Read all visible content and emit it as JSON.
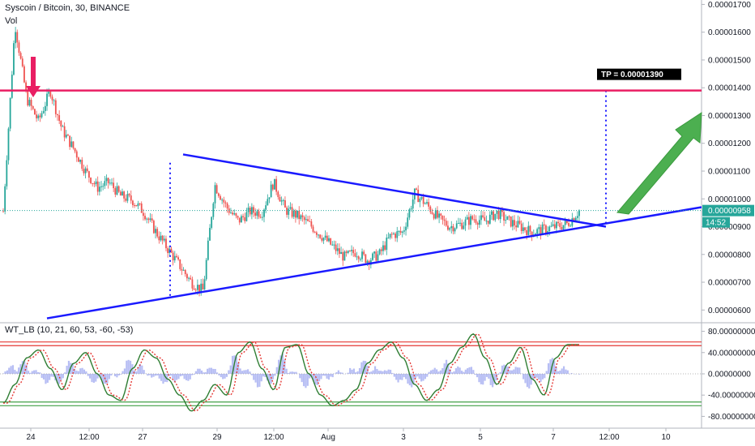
{
  "header": {
    "symbol_line": "Syscoin / Bitcoin, 30, BINANCE",
    "volume_label": "Vol",
    "indicator_label": "WT_LB (10, 21, 60, 53, -60, -53)"
  },
  "annotations": {
    "tp_label": "TP = 0.00001390",
    "current_price": "0.00000958",
    "countdown": "14:52"
  },
  "colors": {
    "up_candle": "#26a69a",
    "down_candle": "#ef5350",
    "resistance": "#e91e63",
    "triangle": "#1a1aff",
    "arrow_green": "#4caf50",
    "price_tag": "#26a69a"
  },
  "chart_data": [
    {
      "type": "line",
      "title": "Syscoin / Bitcoin, 30, BINANCE",
      "y_axis": {
        "ticks": [
          "0.00001700",
          "0.00001600",
          "0.00001500",
          "0.00001400",
          "0.00001300",
          "0.00001200",
          "0.00001100",
          "0.00001000",
          "0.00000900",
          "0.00000800",
          "0.00000700",
          "0.00000600"
        ],
        "ylim": [
          5.6e-06,
          1.71e-05
        ]
      },
      "x_axis": {
        "ticks": [
          "24",
          "12:00",
          "27",
          "29",
          "12:00",
          "Aug",
          "3",
          "5",
          "7",
          "12:00",
          "10"
        ]
      },
      "series": [
        {
          "values": [
            9.55e-06,
            1.63e-05,
            1.36e-05,
            1.28e-05,
            1.39e-05,
            1.25e-05,
            1.18e-05,
            1.1e-05,
            1.04e-05,
            1.06e-05,
            1.01e-05,
            9.95e-06,
            9.5e-06,
            8.8e-06,
            8.2e-06,
            7.6e-06,
            7e-06,
            6.7e-06,
            1.05e-05,
            9.7e-06,
            9.2e-06,
            9.55e-06,
            9.5e-06,
            1.06e-05,
            9.6e-06,
            9.4e-06,
            9.1e-06,
            8.7e-06,
            8.3e-06,
            7.9e-06,
            8.1e-06,
            7.8e-06,
            8e-06,
            8.7e-06,
            8.8e-06,
            1.02e-05,
            9.8e-06,
            9.3e-06,
            9e-06,
            9.1e-06,
            9.3e-06,
            9.2e-06,
            9.5e-06,
            9.2e-06,
            9e-06,
            8.8e-06,
            8.9e-06,
            9e-06,
            9.1e-06,
            9.58e-06
          ]
        }
      ],
      "annotations": [
        "TP = 0.00001390"
      ]
    },
    {
      "type": "line",
      "title": "WT_LB (10, 21, 60, 53, -60, -53)",
      "y_axis": {
        "ticks": [
          "80.00000000",
          "40.00000000",
          "0.00000000",
          "-40.00000000",
          "-80.00000000"
        ],
        "ylim": [
          -90,
          90
        ]
      },
      "levels": [
        60,
        53,
        -53,
        -60
      ],
      "series": [
        {
          "values": [
            -55,
            -20,
            30,
            45,
            10,
            -30,
            20,
            40,
            0,
            -40,
            -50,
            10,
            45,
            30,
            -10,
            -40,
            -70,
            -50,
            -20,
            -40,
            40,
            60,
            10,
            -30,
            50,
            55,
            0,
            -40,
            -60,
            -50,
            -30,
            20,
            45,
            60,
            30,
            -20,
            -50,
            -30,
            20,
            50,
            75,
            30,
            -20,
            20,
            50,
            -10,
            -40,
            30,
            55,
            55
          ]
        }
      ]
    }
  ]
}
